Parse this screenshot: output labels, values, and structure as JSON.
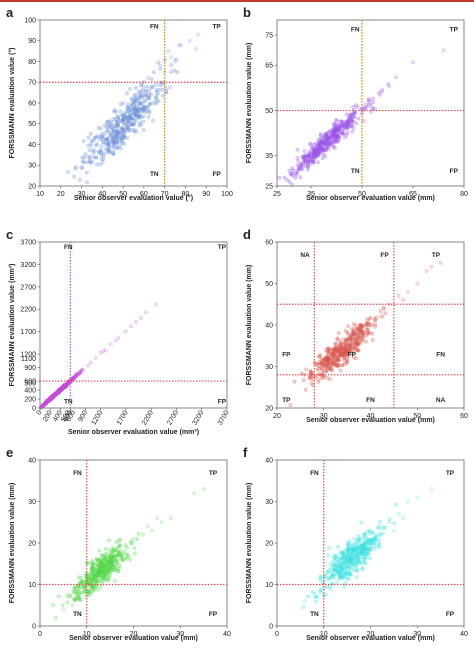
{
  "chart_data": [
    {
      "panel": "a",
      "type": "scatter",
      "color": "#6b8fd6",
      "xlabel": "Senior observer evaluation value  (°)",
      "ylabel": "FORSSMANN evaluation value  (°)",
      "xlim": [
        10,
        100
      ],
      "ylim": [
        20,
        100
      ],
      "xticks": [
        10,
        20,
        30,
        40,
        50,
        60,
        70,
        80,
        90,
        100
      ],
      "yticks": [
        20,
        30,
        40,
        50,
        60,
        70,
        80,
        90,
        100
      ],
      "thresholds": {
        "vertical": [
          70
        ],
        "horizontal": [
          70
        ]
      },
      "line_colors": {
        "vertical": "#e07b00",
        "horizontal": "#e8494d"
      },
      "quadrant_labels": [
        {
          "text": "FN",
          "x": 65,
          "y": 97
        },
        {
          "text": "TP",
          "x": 95,
          "y": 97
        },
        {
          "text": "TN",
          "x": 65,
          "y": 26
        },
        {
          "text": "FP",
          "x": 95,
          "y": 26
        }
      ],
      "cloud": {
        "x_mean": 50,
        "x_sd": 10,
        "slope": 0.95,
        "intercept": 2.5,
        "noise": 5,
        "n": 420
      },
      "outliers": [
        [
          73,
          82
        ],
        [
          78,
          88
        ],
        [
          82,
          90
        ],
        [
          86,
          93
        ],
        [
          68,
          78
        ],
        [
          75,
          80
        ],
        [
          62,
          72
        ],
        [
          72,
          85
        ],
        [
          70,
          75
        ],
        [
          85,
          86
        ]
      ]
    },
    {
      "panel": "b",
      "type": "scatter",
      "color": "#9b55e6",
      "xlabel": "Senior observer evaluation value  (mm)",
      "ylabel": "FORSSMANN evaluation value  (mm)",
      "xlim": [
        25,
        80
      ],
      "ylim": [
        25,
        80
      ],
      "xticks": [
        25,
        35,
        50,
        65,
        80
      ],
      "yticks": [
        25,
        35,
        50,
        65,
        75
      ],
      "thresholds": {
        "vertical": [
          50
        ],
        "horizontal": [
          50
        ]
      },
      "line_colors": {
        "vertical": "#e07b00",
        "horizontal": "#e8494d"
      },
      "quadrant_labels": [
        {
          "text": "FN",
          "x": 48,
          "y": 77
        },
        {
          "text": "TP",
          "x": 77,
          "y": 77
        },
        {
          "text": "TN",
          "x": 48,
          "y": 30
        },
        {
          "text": "FP",
          "x": 77,
          "y": 30
        }
      ],
      "cloud": {
        "x_mean": 40,
        "x_sd": 5.5,
        "slope": 1.0,
        "intercept": 0,
        "noise": 1.8,
        "n": 420
      },
      "outliers": [
        [
          52,
          53
        ],
        [
          55,
          56
        ],
        [
          58,
          58
        ],
        [
          65,
          66
        ],
        [
          74,
          70
        ],
        [
          51,
          52
        ],
        [
          53,
          51
        ],
        [
          56,
          57
        ],
        [
          60,
          61
        ]
      ]
    },
    {
      "panel": "c",
      "type": "scatter",
      "color": "#c44fd6",
      "xlabel": "Senior observer evaluation value  (mm³)",
      "ylabel": "FORSSMANN evaluation value  (mm³)",
      "xlim": [
        0,
        3700
      ],
      "ylim": [
        0,
        3700
      ],
      "xticks": [
        0,
        200,
        400,
        600,
        900,
        1200,
        1700,
        2200,
        2700,
        3200,
        3700
      ],
      "xtick_labels": [
        "0",
        "200",
        "400",
        "600",
        "900",
        "1200",
        "1700",
        "2200",
        "2700",
        "3200",
        "3700"
      ],
      "yticks": [
        0,
        200,
        400,
        600,
        900,
        1200,
        1700,
        2200,
        2700,
        3200,
        3700
      ],
      "ytick_labels": [
        "0",
        "200",
        "400",
        "600",
        "900",
        "1200",
        "1700",
        "2200",
        "2700",
        "3200",
        "3700"
      ],
      "extra_x_labels": [
        {
          "text": "500",
          "x": 560
        },
        {
          "text": "600",
          "x": 660
        }
      ],
      "extra_y_labels": [
        {
          "text": "500",
          "y": 560
        },
        {
          "text": "1100",
          "y": 1100
        }
      ],
      "thresholds": {
        "vertical": [
          600
        ],
        "horizontal": [
          600
        ]
      },
      "line_colors": {
        "vertical": "#c44fd6",
        "horizontal": "#e8494d"
      },
      "quadrant_labels": [
        {
          "text": "FN",
          "x": 560,
          "y": 3600
        },
        {
          "text": "TP",
          "x": 3600,
          "y": 3600
        },
        {
          "text": "TN",
          "x": 560,
          "y": 150
        },
        {
          "text": "FP",
          "x": 3600,
          "y": 150
        }
      ],
      "cloud": {
        "x_mean": 350,
        "x_sd": 180,
        "slope": 1.0,
        "intercept": 0,
        "noise": 15,
        "n": 380
      },
      "outliers": [
        [
          700,
          720
        ],
        [
          850,
          860
        ],
        [
          1000,
          1010
        ],
        [
          1100,
          1120
        ],
        [
          1250,
          1270
        ],
        [
          1400,
          1420
        ],
        [
          1550,
          1560
        ],
        [
          1700,
          1710
        ],
        [
          1900,
          1920
        ],
        [
          2100,
          2130
        ],
        [
          2300,
          2310
        ],
        [
          650,
          640
        ],
        [
          750,
          760
        ],
        [
          950,
          940
        ],
        [
          1200,
          1230
        ],
        [
          1300,
          1290
        ],
        [
          1500,
          1500
        ],
        [
          1800,
          1820
        ],
        [
          2000,
          2010
        ]
      ]
    },
    {
      "panel": "d",
      "type": "scatter",
      "color": "#d9574e",
      "xlabel": "Senior observer evaluation value  (mm)",
      "ylabel": "FORSSMANN evaluation value  (mm)",
      "xlim": [
        20,
        60
      ],
      "ylim": [
        20,
        60
      ],
      "xticks": [
        20,
        30,
        40,
        50,
        60
      ],
      "yticks": [
        20,
        30,
        40,
        50,
        60
      ],
      "thresholds": {
        "vertical": [
          28,
          45
        ],
        "horizontal": [
          28,
          45
        ]
      },
      "line_colors": {
        "vertical": "#d9574e",
        "horizontal": "#e8494d"
      },
      "quadrant_labels": [
        {
          "text": "NA",
          "x": 26,
          "y": 57
        },
        {
          "text": "FP",
          "x": 43,
          "y": 57
        },
        {
          "text": "TP",
          "x": 54,
          "y": 57
        },
        {
          "text": "FP",
          "x": 22,
          "y": 33
        },
        {
          "text": "FP",
          "x": 36,
          "y": 33
        },
        {
          "text": "FN",
          "x": 55,
          "y": 33
        },
        {
          "text": "TP",
          "x": 22,
          "y": 22
        },
        {
          "text": "FN",
          "x": 40,
          "y": 22
        },
        {
          "text": "NA",
          "x": 55,
          "y": 22
        }
      ],
      "cloud": {
        "x_mean": 34,
        "x_sd": 3.5,
        "slope": 0.9,
        "intercept": 3.5,
        "noise": 1.8,
        "n": 420
      },
      "outliers": [
        [
          44,
          45
        ],
        [
          46,
          47
        ],
        [
          48,
          48
        ],
        [
          50,
          50
        ],
        [
          53,
          54
        ],
        [
          42,
          42
        ],
        [
          47,
          46
        ],
        [
          52,
          53
        ],
        [
          55,
          55
        ],
        [
          43,
          44
        ]
      ]
    },
    {
      "panel": "e",
      "type": "scatter",
      "color": "#55d64c",
      "xlabel": "Senior observer evaluation value  (mm)",
      "ylabel": "FORSSMANN evaluation value  (mm)",
      "xlim": [
        0,
        40
      ],
      "ylim": [
        0,
        40
      ],
      "xticks": [
        0,
        10,
        20,
        30,
        40
      ],
      "yticks": [
        0,
        10,
        20,
        30,
        40
      ],
      "thresholds": {
        "vertical": [
          10
        ],
        "horizontal": [
          10
        ]
      },
      "line_colors": {
        "vertical": "#e8494d",
        "horizontal": "#e8494d"
      },
      "quadrant_labels": [
        {
          "text": "FN",
          "x": 8,
          "y": 37
        },
        {
          "text": "TP",
          "x": 37,
          "y": 37
        },
        {
          "text": "TN",
          "x": 8,
          "y": 3
        },
        {
          "text": "FP",
          "x": 37,
          "y": 3
        }
      ],
      "cloud": {
        "x_mean": 13,
        "x_sd": 3,
        "slope": 0.9,
        "intercept": 1.5,
        "noise": 1.8,
        "n": 420
      },
      "outliers": [
        [
          22,
          22
        ],
        [
          24,
          23
        ],
        [
          26,
          25
        ],
        [
          28,
          26
        ],
        [
          33,
          32
        ],
        [
          35,
          33
        ],
        [
          20,
          21
        ],
        [
          23,
          24
        ],
        [
          25,
          26
        ],
        [
          5,
          4
        ],
        [
          7,
          5
        ]
      ]
    },
    {
      "panel": "f",
      "type": "scatter",
      "color": "#3fe0e0",
      "xlabel": "Senior observer evaluation value  (mm)",
      "ylabel": "FORSSMANN evaluation value  (mm)",
      "xlim": [
        0,
        40
      ],
      "ylim": [
        0,
        40
      ],
      "xticks": [
        0,
        10,
        20,
        30,
        40
      ],
      "yticks": [
        0,
        10,
        20,
        30,
        40
      ],
      "thresholds": {
        "vertical": [
          10
        ],
        "horizontal": [
          10
        ]
      },
      "line_colors": {
        "vertical": "#e8494d",
        "horizontal": "#e8494d"
      },
      "quadrant_labels": [
        {
          "text": "FN",
          "x": 8,
          "y": 37
        },
        {
          "text": "TP",
          "x": 37,
          "y": 37
        },
        {
          "text": "TN",
          "x": 8,
          "y": 3
        },
        {
          "text": "FP",
          "x": 37,
          "y": 3
        }
      ],
      "cloud": {
        "x_mean": 16,
        "x_sd": 3.2,
        "slope": 0.9,
        "intercept": 2,
        "noise": 2,
        "n": 420
      },
      "outliers": [
        [
          24,
          25
        ],
        [
          26,
          27
        ],
        [
          28,
          30
        ],
        [
          30,
          31
        ],
        [
          33,
          33
        ],
        [
          22,
          24
        ],
        [
          25,
          23
        ],
        [
          27,
          26
        ],
        [
          6,
          6
        ],
        [
          8,
          7
        ]
      ]
    }
  ]
}
